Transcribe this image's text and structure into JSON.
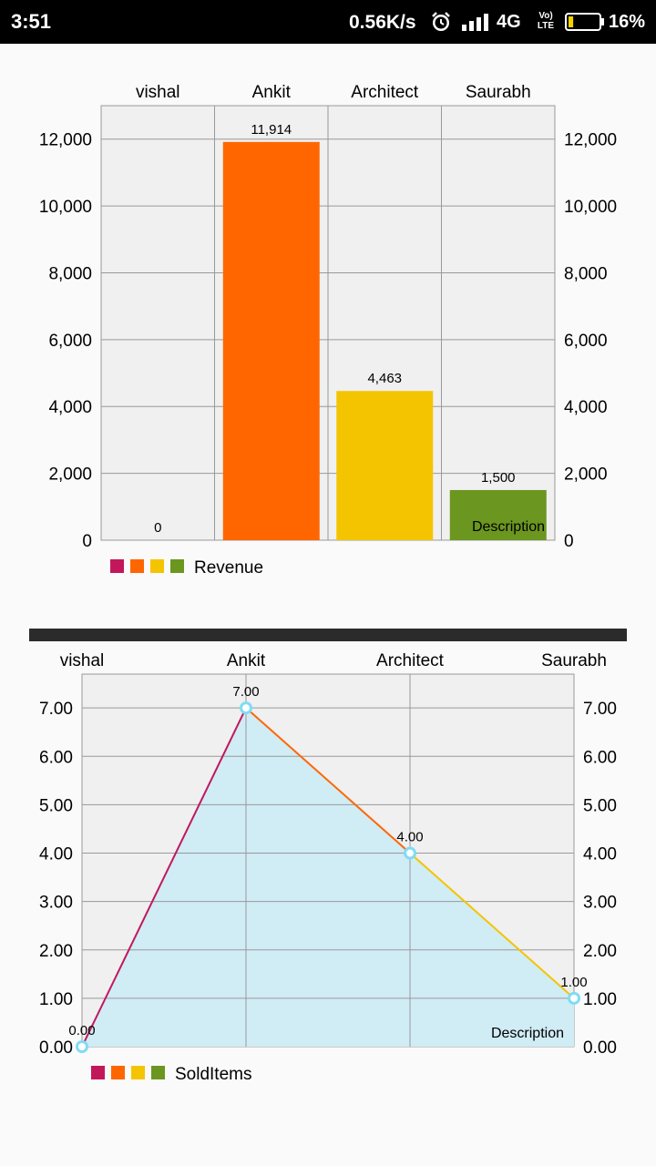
{
  "status_bar": {
    "time": "3:51",
    "net_speed": "0.56K/s",
    "network_type": "4G",
    "volte_top": "Vo)",
    "volte_bottom": "LTE",
    "battery_percent": "16%",
    "battery_level": 16,
    "icons": [
      "alarm-icon",
      "signal-icon",
      "volte-icon",
      "battery-icon"
    ]
  },
  "chart_data": [
    {
      "type": "bar",
      "categories": [
        "vishal",
        "Ankit",
        "Architect",
        "Saurabh"
      ],
      "values": [
        0,
        11914,
        4463,
        1500
      ],
      "value_labels": [
        "0",
        "11,914",
        "4,463",
        "1,500"
      ],
      "y_ticks": [
        "0",
        "2,000",
        "4,000",
        "6,000",
        "8,000",
        "10,000",
        "12,000"
      ],
      "ylim": [
        0,
        13000
      ],
      "legend": "Revenue",
      "legend_placement": "bottom-left",
      "description": "Description",
      "grid": true,
      "colors": [
        "#c2185b",
        "#ff6600",
        "#f5c400",
        "#6b961f"
      ]
    },
    {
      "type": "area",
      "categories": [
        "vishal",
        "Ankit",
        "Architect",
        "Saurabh"
      ],
      "values": [
        0,
        7,
        4,
        1
      ],
      "value_labels": [
        "0.00",
        "7.00",
        "4.00",
        "1.00"
      ],
      "y_ticks": [
        "0.00",
        "1.00",
        "2.00",
        "3.00",
        "4.00",
        "5.00",
        "6.00",
        "7.00"
      ],
      "ylim": [
        0,
        7.7
      ],
      "legend": "SoldItems",
      "legend_placement": "bottom-left",
      "description": "Description",
      "grid": true,
      "fill_color": "#d0ecf5",
      "point_color": "#7fdcf5",
      "colors": [
        "#c2185b",
        "#ff6600",
        "#f5c400",
        "#6b961f"
      ]
    }
  ]
}
